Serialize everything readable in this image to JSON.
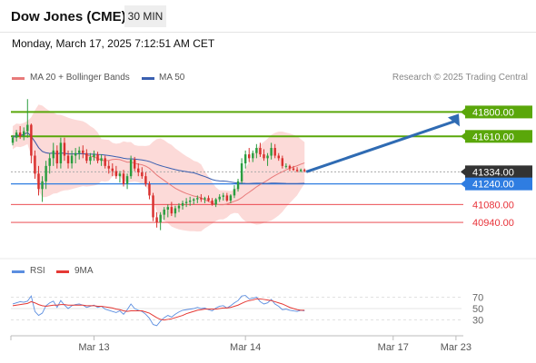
{
  "header": {
    "title": "Dow Jones (CME)",
    "timeframe": "30 MIN",
    "datetime": "Monday, March 17, 2025 7:12:51 AM CET"
  },
  "legend": {
    "ma20_label": "MA 20 + Bollinger Bands",
    "ma50_label": "MA 50",
    "credit": "Research © 2025 Trading Central",
    "rsi_label": "RSI",
    "rsi_ma_label": "9MA"
  },
  "colors": {
    "resistance": "#5aa70a",
    "pivot": "#2f7de1",
    "support": "#e8333a",
    "current": "#333333",
    "bull": "#2a9d3f",
    "bear": "#d9302e",
    "ma20": "#e87a7a",
    "ma50": "#3a5fb0",
    "band": "#fbd3d1",
    "rsi": "#5b8ee0",
    "rsi_ma": "#e53935",
    "arrow": "#2f6bb3"
  },
  "chart_data": [
    {
      "type": "candlestick",
      "ylim": [
        40750,
        41930
      ],
      "levels": [
        {
          "kind": "resistance",
          "value": 41800,
          "label": "41800.00"
        },
        {
          "kind": "resistance",
          "value": 41610,
          "label": "41610.00"
        },
        {
          "kind": "current",
          "value": 41334,
          "label": "41334.00"
        },
        {
          "kind": "pivot",
          "value": 41240,
          "label": "41240.00"
        },
        {
          "kind": "support",
          "value": 41080,
          "label": "41080.00"
        },
        {
          "kind": "support",
          "value": 40940,
          "label": "40940.00"
        }
      ],
      "x_ticks": [
        {
          "label": "Mar 13",
          "index": 22
        },
        {
          "label": "Mar 14",
          "index": 63
        },
        {
          "label": "Mar 17",
          "index": 103
        },
        {
          "label": "Mar 23",
          "index": 120
        }
      ],
      "index_count": 122,
      "projection": {
        "from_value": 41334,
        "to_value": 41800
      },
      "candles": [
        [
          41560,
          41620,
          41540,
          41600
        ],
        [
          41600,
          41660,
          41570,
          41640
        ],
        [
          41640,
          41690,
          41590,
          41610
        ],
        [
          41610,
          41680,
          41580,
          41650
        ],
        [
          41650,
          41900,
          41600,
          41700
        ],
        [
          41700,
          41710,
          41400,
          41460
        ],
        [
          41460,
          41500,
          41280,
          41320
        ],
        [
          41320,
          41380,
          41150,
          41200
        ],
        [
          41200,
          41300,
          41100,
          41260
        ],
        [
          41260,
          41420,
          41200,
          41380
        ],
        [
          41380,
          41480,
          41320,
          41440
        ],
        [
          41440,
          41560,
          41380,
          41500
        ],
        [
          41500,
          41540,
          41360,
          41400
        ],
        [
          41400,
          41600,
          41360,
          41560
        ],
        [
          41560,
          41600,
          41420,
          41460
        ],
        [
          41460,
          41500,
          41360,
          41400
        ],
        [
          41400,
          41500,
          41360,
          41460
        ],
        [
          41460,
          41520,
          41400,
          41480
        ],
        [
          41480,
          41530,
          41430,
          41500
        ],
        [
          41500,
          41540,
          41440,
          41480
        ],
        [
          41480,
          41510,
          41400,
          41420
        ],
        [
          41420,
          41480,
          41390,
          41450
        ],
        [
          41450,
          41500,
          41420,
          41470
        ],
        [
          41470,
          41490,
          41400,
          41420
        ],
        [
          41420,
          41470,
          41380,
          41440
        ],
        [
          41440,
          41460,
          41360,
          41380
        ],
        [
          41380,
          41420,
          41320,
          41360
        ],
        [
          41360,
          41400,
          41300,
          41340
        ],
        [
          41340,
          41380,
          41280,
          41300
        ],
        [
          41300,
          41340,
          41250,
          41320
        ],
        [
          41320,
          41350,
          41220,
          41240
        ],
        [
          41240,
          41320,
          41200,
          41300
        ],
        [
          41300,
          41460,
          41280,
          41430
        ],
        [
          41430,
          41450,
          41340,
          41360
        ],
        [
          41360,
          41400,
          41300,
          41330
        ],
        [
          41330,
          41370,
          41280,
          41300
        ],
        [
          41300,
          41330,
          41220,
          41240
        ],
        [
          41240,
          41260,
          41120,
          41150
        ],
        [
          41150,
          41170,
          40950,
          40980
        ],
        [
          40980,
          41020,
          40900,
          40940
        ],
        [
          40940,
          41020,
          40880,
          41000
        ],
        [
          41000,
          41060,
          40960,
          41040
        ],
        [
          41040,
          41080,
          40980,
          41060
        ],
        [
          41060,
          41100,
          40990,
          41010
        ],
        [
          41010,
          41070,
          40980,
          41050
        ],
        [
          41050,
          41090,
          41020,
          41070
        ],
        [
          41070,
          41110,
          41040,
          41090
        ],
        [
          41090,
          41130,
          41060,
          41100
        ],
        [
          41100,
          41140,
          41070,
          41110
        ],
        [
          41110,
          41130,
          41080,
          41120
        ],
        [
          41120,
          41150,
          41090,
          41130
        ],
        [
          41130,
          41160,
          41100,
          41120
        ],
        [
          41120,
          41140,
          41090,
          41130
        ],
        [
          41130,
          41150,
          41100,
          41110
        ],
        [
          41110,
          41130,
          41070,
          41080
        ],
        [
          41080,
          41130,
          41060,
          41120
        ],
        [
          41120,
          41160,
          41100,
          41140
        ],
        [
          41140,
          41170,
          41110,
          41150
        ],
        [
          41150,
          41170,
          41100,
          41110
        ],
        [
          41110,
          41160,
          41090,
          41150
        ],
        [
          41150,
          41230,
          41130,
          41200
        ],
        [
          41200,
          41280,
          41180,
          41260
        ],
        [
          41260,
          41440,
          41240,
          41400
        ],
        [
          41400,
          41500,
          41360,
          41470
        ],
        [
          41470,
          41520,
          41410,
          41440
        ],
        [
          41440,
          41500,
          41410,
          41480
        ],
        [
          41480,
          41550,
          41440,
          41520
        ],
        [
          41520,
          41560,
          41450,
          41470
        ],
        [
          41470,
          41510,
          41420,
          41440
        ],
        [
          41440,
          41480,
          41380,
          41460
        ],
        [
          41460,
          41560,
          41430,
          41520
        ],
        [
          41520,
          41550,
          41440,
          41460
        ],
        [
          41460,
          41480,
          41420,
          41440
        ],
        [
          41440,
          41460,
          41360,
          41380
        ],
        [
          41380,
          41400,
          41360,
          41380
        ],
        [
          41380,
          41390,
          41340,
          41360
        ],
        [
          41360,
          41380,
          41340,
          41350
        ],
        [
          41350,
          41370,
          41330,
          41340
        ],
        [
          41340,
          41360,
          41330,
          41350
        ],
        [
          41350,
          41360,
          41330,
          41340
        ]
      ]
    },
    {
      "type": "line",
      "name": "RSI",
      "ylim": [
        15,
        85
      ],
      "y_ticks": [
        70,
        50,
        30
      ],
      "values": [
        58,
        60,
        62,
        61,
        63,
        72,
        45,
        38,
        42,
        55,
        60,
        63,
        52,
        64,
        56,
        50,
        55,
        57,
        58,
        56,
        52,
        54,
        56,
        52,
        54,
        49,
        47,
        45,
        43,
        46,
        40,
        48,
        58,
        50,
        47,
        45,
        40,
        33,
        22,
        20,
        28,
        34,
        38,
        35,
        40,
        44,
        47,
        48,
        49,
        50,
        52,
        50,
        51,
        48,
        46,
        51,
        54,
        55,
        51,
        55,
        60,
        64,
        72,
        73,
        67,
        68,
        70,
        62,
        58,
        60,
        66,
        58,
        54,
        48,
        49,
        47,
        46,
        45,
        47,
        46
      ],
      "ma_values": [
        55,
        56,
        57,
        58,
        59,
        62,
        60,
        57,
        55,
        54,
        55,
        56,
        56,
        57,
        57,
        56,
        56,
        56,
        56,
        56,
        55,
        55,
        55,
        54,
        54,
        53,
        52,
        51,
        49,
        48,
        46,
        45,
        46,
        46,
        46,
        46,
        44,
        42,
        38,
        34,
        31,
        30,
        31,
        32,
        34,
        36,
        38,
        41,
        43,
        45,
        47,
        48,
        49,
        49,
        49,
        49,
        50,
        51,
        51,
        52,
        54,
        56,
        59,
        62,
        64,
        65,
        67,
        67,
        66,
        65,
        64,
        62,
        60,
        58,
        55,
        52,
        50,
        48,
        47,
        47
      ]
    }
  ]
}
